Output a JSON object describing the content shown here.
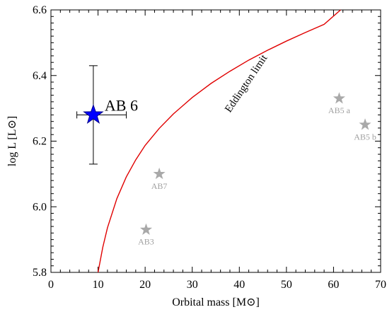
{
  "chart_data": {
    "type": "scatter",
    "xlabel": "Orbital mass [M⊙]",
    "ylabel": "log L [L⊙]",
    "xlim": [
      0,
      70
    ],
    "ylim": [
      5.8,
      6.6
    ],
    "x_ticks": [
      "0",
      "10",
      "20",
      "30",
      "40",
      "50",
      "60",
      "70"
    ],
    "y_ticks": [
      "5.8",
      "6.0",
      "6.2",
      "6.4",
      "6.6"
    ],
    "grid": false,
    "points": [
      {
        "label": "AB 6",
        "x": 9,
        "y": 6.28,
        "xerr": [
          3.5,
          7
        ],
        "yerr": [
          0.15,
          0.15
        ],
        "marker": "star",
        "color": "#0000ff",
        "edge": "#00008b",
        "size": "large"
      },
      {
        "label": "AB7",
        "x": 23,
        "y": 6.1,
        "marker": "star",
        "color": "#a9a9a9"
      },
      {
        "label": "AB3",
        "x": 20.2,
        "y": 5.93,
        "marker": "star",
        "color": "#a9a9a9"
      },
      {
        "label": "AB5 a",
        "x": 61.2,
        "y": 6.33,
        "marker": "star",
        "color": "#a9a9a9"
      },
      {
        "label": "AB5 b",
        "x": 66.7,
        "y": 6.25,
        "marker": "star",
        "color": "#a9a9a9"
      }
    ],
    "curves": [
      {
        "name": "Eddington limit",
        "color": "#e00000",
        "x": [
          10,
          11,
          12,
          14,
          16,
          18,
          20,
          23,
          26,
          30,
          34,
          38,
          42,
          46,
          50,
          54,
          58,
          61.5
        ],
        "y": [
          5.8,
          5.876,
          5.936,
          6.025,
          6.091,
          6.143,
          6.187,
          6.239,
          6.283,
          6.333,
          6.376,
          6.413,
          6.447,
          6.477,
          6.505,
          6.531,
          6.556,
          6.6
        ]
      }
    ]
  }
}
